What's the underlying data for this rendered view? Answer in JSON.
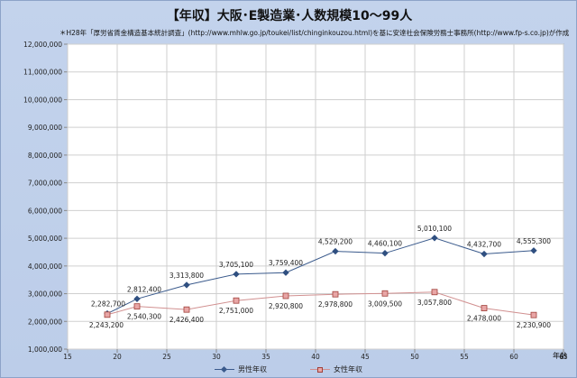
{
  "chart_data": {
    "type": "line",
    "title": "【年収】大阪･E製造業･人数規模10～99人",
    "note": "＊H28年「厚労省賃金構造基本統計調査」(http://www.mhlw.go.jp/toukei/list/chinginkouzou.html)を基に安達社会保険労務士事務所(http://www.fp-s.co.jp)が作成",
    "xlabel": "年齢",
    "ylabel": "",
    "xlim": [
      15,
      65
    ],
    "ylim": [
      1000000,
      12000000
    ],
    "xticks": [
      15,
      20,
      25,
      30,
      35,
      40,
      45,
      50,
      55,
      60,
      65
    ],
    "yticks": [
      1000000,
      2000000,
      3000000,
      4000000,
      5000000,
      6000000,
      7000000,
      8000000,
      9000000,
      10000000,
      11000000,
      12000000
    ],
    "ytick_labels": [
      "1,000,000",
      "2,000,000",
      "3,000,000",
      "4,000,000",
      "5,000,000",
      "6,000,000",
      "7,000,000",
      "8,000,000",
      "9,000,000",
      "10,000,000",
      "11,000,000",
      "12,000,000"
    ],
    "grid": true,
    "legend": "bottom",
    "x": [
      19,
      22,
      27,
      32,
      37,
      42,
      47,
      52,
      57,
      62
    ],
    "series": [
      {
        "name": "男性年収",
        "color": "#3a5a8c",
        "marker": "diamond",
        "values": [
          2282700,
          2812400,
          3313800,
          3705100,
          3759400,
          4529200,
          4460100,
          5010100,
          4432700,
          4555300
        ],
        "labels": [
          "2,282,700",
          "2,812,400",
          "3,313,800",
          "3,705,100",
          "3,759,400",
          "4,529,200",
          "4,460,100",
          "5,010,100",
          "4,432,700",
          "4,555,300"
        ]
      },
      {
        "name": "女性年収",
        "color": "#d19090",
        "marker": "square",
        "values": [
          2243200,
          2540300,
          2426400,
          2751000,
          2920800,
          2978800,
          3009500,
          3057800,
          2478000,
          2230900
        ],
        "labels": [
          "2,243,200",
          "2,540,300",
          "2,426,400",
          "2,751,000",
          "2,920,800",
          "2,978,800",
          "3,009,500",
          "3,057,800",
          "2,478,000",
          "2,230,900"
        ]
      }
    ]
  }
}
